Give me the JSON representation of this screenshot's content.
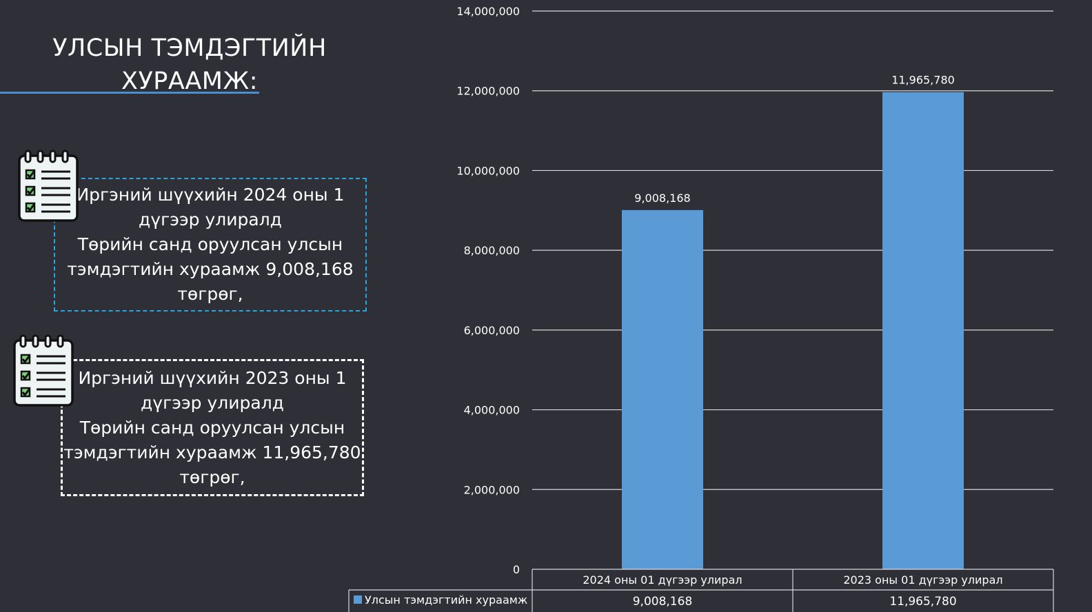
{
  "title": "УЛСЫН ТЭМДЭГТИЙН ХУРААМЖ:",
  "info_boxes": [
    {
      "text": "Иргэний шүүхийн 2024 оны 1\nдүгээр улиралд\nТөрийн санд оруулсан улсын\nтэмдэгтийн хураамж 9,008,168\nтөгрөг,"
    },
    {
      "text": "Иргэний шүүхийн 2023 оны 1\nдүгээр улиралд\nТөрийн санд оруулсан улсын\nтэмдэгтийн хураамж 11,965,780\nтөгрөг,"
    }
  ],
  "icons": [
    "notepad-checklist-icon"
  ],
  "colors": {
    "background": "#2e2f37",
    "bar": "#5b9bd5",
    "box1_border": "#2aa6dc",
    "box2_border": "#ffffff",
    "underline": "#4a8fd4"
  },
  "chart_data": {
    "type": "bar",
    "categories": [
      "2024 оны 01 дүгээр улирал",
      "2023 оны 01 дүгээр улирал"
    ],
    "series": [
      {
        "name": "Улсын тэмдэгтийн хураамж",
        "values": [
          9008168,
          11965780
        ]
      }
    ],
    "value_labels": [
      "9,008,168",
      "11,965,780"
    ],
    "ylim": [
      0,
      14000000
    ],
    "yticks": [
      0,
      2000000,
      4000000,
      6000000,
      8000000,
      10000000,
      12000000,
      14000000
    ],
    "ytick_labels": [
      "0",
      "2,000,000",
      "4,000,000",
      "6,000,000",
      "8,000,000",
      "10,000,000",
      "12,000,000",
      "14,000,000"
    ],
    "grid": true,
    "data_table": true
  }
}
